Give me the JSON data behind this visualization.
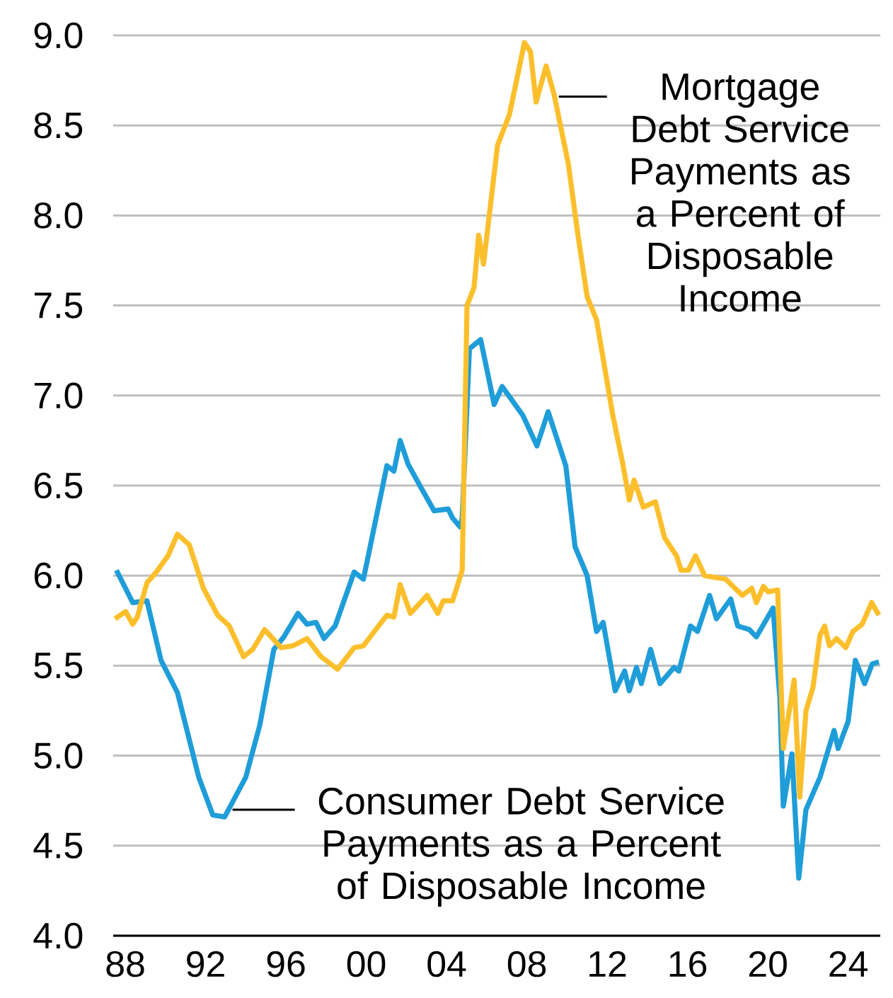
{
  "chart_data": {
    "type": "line",
    "xlim": [
      1987.4,
      2025.6
    ],
    "ylim": [
      4,
      9
    ],
    "xticks": [
      {
        "value": 1988,
        "label": "88"
      },
      {
        "value": 1992,
        "label": "92"
      },
      {
        "value": 1996,
        "label": "96"
      },
      {
        "value": 2000,
        "label": "00"
      },
      {
        "value": 2004,
        "label": "04"
      },
      {
        "value": 2008,
        "label": "08"
      },
      {
        "value": 2012,
        "label": "12"
      },
      {
        "value": 2016,
        "label": "16"
      },
      {
        "value": 2020,
        "label": "20"
      },
      {
        "value": 2024,
        "label": "24"
      }
    ],
    "yticks": [
      {
        "value": 4,
        "label": "4.0"
      },
      {
        "value": 4.5,
        "label": "4.5"
      },
      {
        "value": 5,
        "label": "5.0"
      },
      {
        "value": 5.5,
        "label": "5.5"
      },
      {
        "value": 6,
        "label": "6.0"
      },
      {
        "value": 6.5,
        "label": "6.5"
      },
      {
        "value": 7,
        "label": "7.0"
      },
      {
        "value": 7.5,
        "label": "7.5"
      },
      {
        "value": 8,
        "label": "8.0"
      },
      {
        "value": 8.5,
        "label": "8.5"
      },
      {
        "value": 9,
        "label": "9.0"
      }
    ],
    "grid": "y",
    "marker": "none",
    "line_style": "solid",
    "series": [
      {
        "color": "#1f9dd9",
        "x": [
          1987.56,
          1988.37,
          1989.08,
          1989.78,
          1990.6,
          1991.66,
          1992.36,
          1992.95,
          1994.0,
          1994.7,
          1995.4,
          1995.9,
          1996.6,
          1997.05,
          1997.5,
          1997.9,
          1998.45,
          1999.4,
          1999.86,
          2001.03,
          2001.38,
          2001.69,
          2002.08,
          2002.67,
          2003.38,
          2004.08,
          2004.3,
          2004.67,
          2004.78,
          2005.14,
          2005.7,
          2006.37,
          2006.77,
          2007.8,
          2008.5,
          2009.06,
          2009.94,
          2010.4,
          2011.0,
          2011.47,
          2011.8,
          2012.4,
          2012.87,
          2013.1,
          2013.46,
          2013.7,
          2014.16,
          2014.63,
          2015.33,
          2015.57,
          2016.15,
          2016.5,
          2017.1,
          2017.44,
          2018.15,
          2018.5,
          2019.08,
          2019.43,
          2020.26,
          2020.6,
          2020.77,
          2021.2,
          2021.54,
          2021.9,
          2022.6,
          2022.95,
          2023.3,
          2023.5,
          2024.0,
          2024.36,
          2024.82,
          2025.2,
          2025.53
        ],
        "values": [
          6.03,
          5.85,
          5.86,
          5.53,
          5.35,
          4.88,
          4.67,
          4.66,
          4.88,
          5.17,
          5.59,
          5.66,
          5.79,
          5.73,
          5.74,
          5.65,
          5.72,
          6.02,
          5.98,
          6.61,
          6.58,
          6.75,
          6.62,
          6.5,
          6.36,
          6.37,
          6.32,
          6.27,
          6.32,
          7.26,
          7.31,
          6.95,
          7.05,
          6.89,
          6.72,
          6.91,
          6.61,
          6.16,
          6.0,
          5.69,
          5.74,
          5.36,
          5.47,
          5.36,
          5.49,
          5.4,
          5.59,
          5.4,
          5.49,
          5.47,
          5.72,
          5.69,
          5.89,
          5.76,
          5.87,
          5.72,
          5.7,
          5.66,
          5.82,
          5.32,
          4.72,
          5.01,
          4.32,
          4.7,
          4.88,
          5.01,
          5.14,
          5.04,
          5.19,
          5.53,
          5.4,
          5.51,
          5.52
        ]
      },
      {
        "color": "#fcbf2c",
        "x": [
          1987.49,
          1988.02,
          1988.37,
          1988.6,
          1989.08,
          1989.55,
          1990.13,
          1990.6,
          1991.19,
          1991.89,
          1992.6,
          1993.18,
          1993.89,
          1994.35,
          1994.94,
          1995.76,
          1996.35,
          1997.05,
          1997.75,
          1998.57,
          1999.4,
          1999.86,
          2000.68,
          2001.03,
          2001.38,
          2001.69,
          2002.2,
          2003.03,
          2003.56,
          2003.84,
          2004.3,
          2004.78,
          2005.02,
          2005.37,
          2005.6,
          2005.84,
          2006.54,
          2007.13,
          2007.88,
          2008.18,
          2008.46,
          2008.96,
          2009.36,
          2010.06,
          2010.52,
          2011.0,
          2011.47,
          2012.28,
          2012.76,
          2013.1,
          2013.34,
          2013.8,
          2014.4,
          2014.86,
          2015.45,
          2015.68,
          2016.04,
          2016.4,
          2016.85,
          2017.9,
          2018.73,
          2019.2,
          2019.43,
          2019.78,
          2020.02,
          2020.49,
          2020.77,
          2021.31,
          2021.59,
          2021.9,
          2022.25,
          2022.6,
          2022.83,
          2023.07,
          2023.42,
          2023.88,
          2024.24,
          2024.7,
          2025.17,
          2025.53
        ],
        "values": [
          5.76,
          5.8,
          5.73,
          5.77,
          5.96,
          6.02,
          6.11,
          6.23,
          6.17,
          5.93,
          5.78,
          5.72,
          5.55,
          5.59,
          5.7,
          5.6,
          5.61,
          5.65,
          5.55,
          5.48,
          5.6,
          5.61,
          5.73,
          5.78,
          5.77,
          5.95,
          5.79,
          5.89,
          5.79,
          5.86,
          5.86,
          6.03,
          7.5,
          7.6,
          7.89,
          7.73,
          8.39,
          8.56,
          8.96,
          8.91,
          8.63,
          8.83,
          8.67,
          8.29,
          7.91,
          7.55,
          7.42,
          6.89,
          6.63,
          6.42,
          6.53,
          6.38,
          6.41,
          6.21,
          6.11,
          6.03,
          6.03,
          6.11,
          6.0,
          5.98,
          5.89,
          5.93,
          5.85,
          5.94,
          5.91,
          5.92,
          5.04,
          5.42,
          4.77,
          5.25,
          5.38,
          5.67,
          5.72,
          5.61,
          5.65,
          5.6,
          5.69,
          5.73,
          5.85,
          5.78
        ]
      }
    ],
    "annotations": [
      {
        "text": "Mortgage Debt Service Payments as a Percent of Disposable Income",
        "x": 2009.45,
        "y": 8.66
      },
      {
        "text": "Consumer Debt Service Payments as a Percent of Disposable Income",
        "x": 1993.2,
        "y": 4.7
      }
    ]
  }
}
